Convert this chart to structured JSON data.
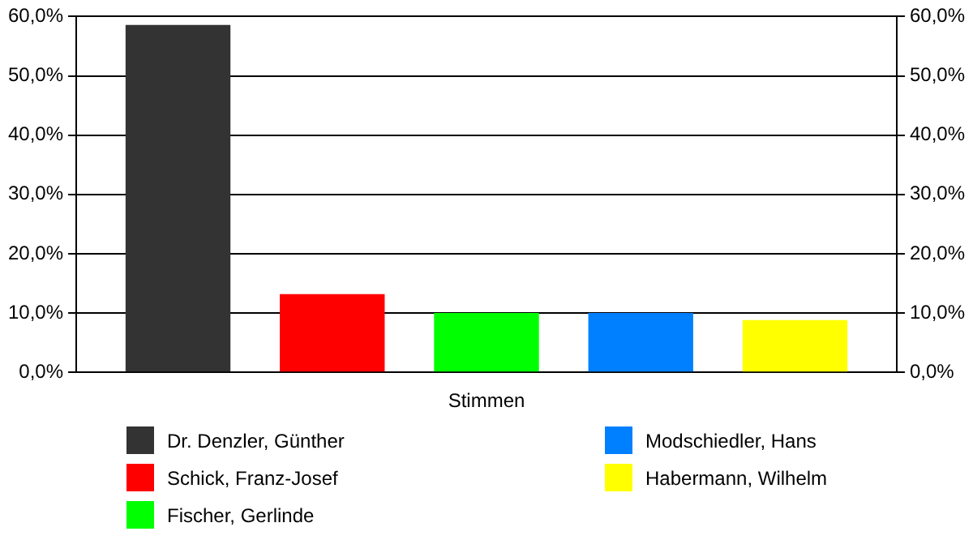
{
  "chart_data": {
    "type": "bar",
    "categories": [
      "Stimmen"
    ],
    "series": [
      {
        "name": "Dr. Denzler, Günther",
        "color": "#333333",
        "values": [
          58.6
        ]
      },
      {
        "name": "Schick, Franz-Josef",
        "color": "#ff0000",
        "values": [
          13.2
        ]
      },
      {
        "name": "Fischer, Gerlinde",
        "color": "#00ff00",
        "values": [
          10.0
        ]
      },
      {
        "name": "Modschiedler, Hans",
        "color": "#0080ff",
        "values": [
          10.0
        ]
      },
      {
        "name": "Habermann, Wilhelm",
        "color": "#ffff00",
        "values": [
          8.8
        ]
      }
    ],
    "ylim": [
      0,
      60
    ],
    "yticks": [
      {
        "value": 0,
        "label": "0,0%"
      },
      {
        "value": 10,
        "label": "10,0%"
      },
      {
        "value": 20,
        "label": "20,0%"
      },
      {
        "value": 30,
        "label": "30,0%"
      },
      {
        "value": 40,
        "label": "40,0%"
      },
      {
        "value": 50,
        "label": "50,0%"
      },
      {
        "value": 60,
        "label": "60,0%"
      }
    ],
    "grid": "y",
    "legend": "bottom"
  }
}
